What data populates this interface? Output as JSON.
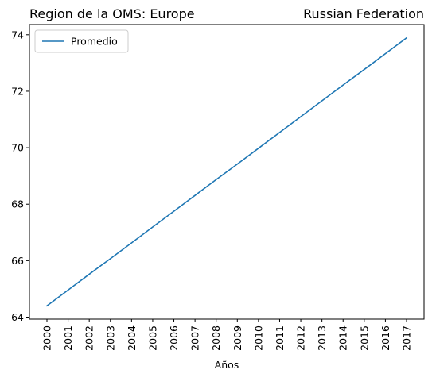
{
  "chart_data": {
    "type": "line",
    "title_left": "Region de la OMS: Europe",
    "title_right": "Russian Federation",
    "xlabel": "Años",
    "ylabel": "",
    "categories": [
      "2000",
      "2001",
      "2002",
      "2003",
      "2004",
      "2005",
      "2006",
      "2007",
      "2008",
      "2009",
      "2010",
      "2011",
      "2012",
      "2013",
      "2014",
      "2015",
      "2016",
      "2017"
    ],
    "series": [
      {
        "name": "Promedio",
        "color": "#1f77b4",
        "values": [
          64.4,
          64.96,
          65.52,
          66.07,
          66.63,
          67.19,
          67.75,
          68.31,
          68.87,
          69.42,
          69.98,
          70.54,
          71.1,
          71.66,
          72.22,
          72.77,
          73.33,
          73.89
        ]
      }
    ],
    "yticks": [
      64,
      66,
      68,
      70,
      72,
      74
    ],
    "ylim": [
      63.93,
      74.36
    ],
    "legend_position": "upper-left",
    "grid": false
  }
}
